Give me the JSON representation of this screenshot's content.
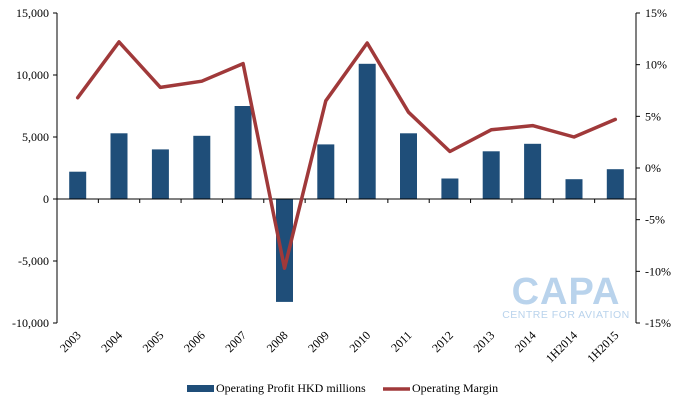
{
  "chart_data": {
    "type": "bar",
    "categories": [
      "2003",
      "2004",
      "2005",
      "2006",
      "2007",
      "2008",
      "2009",
      "2010",
      "2011",
      "2012",
      "2013",
      "2014",
      "1H2014",
      "1H2015"
    ],
    "series": [
      {
        "name": "Operating Profit HKD millions",
        "type": "bar",
        "axis": "left",
        "color": "#1f4e79",
        "values": [
          2200,
          5300,
          4000,
          5100,
          7500,
          -8300,
          4400,
          10900,
          5300,
          1650,
          3850,
          4450,
          1600,
          2400
        ]
      },
      {
        "name": "Operating Margin",
        "type": "line",
        "axis": "right",
        "color": "#a0393a",
        "values": [
          6.8,
          12.2,
          7.8,
          8.4,
          10.1,
          -9.7,
          6.5,
          12.1,
          5.4,
          1.6,
          3.7,
          4.1,
          3.0,
          4.7
        ]
      }
    ],
    "y_left": {
      "min": -10000,
      "max": 15000,
      "ticks": [
        15000,
        10000,
        5000,
        0,
        -5000,
        -10000
      ],
      "tick_labels": [
        "15,000",
        "10,000",
        "5,000",
        "0",
        "-5,000",
        "-10,000"
      ]
    },
    "y_right": {
      "min": -15,
      "max": 15,
      "ticks": [
        15,
        10,
        5,
        0,
        -5,
        -10,
        -15
      ],
      "tick_labels": [
        "15%",
        "10%",
        "5%",
        "0%",
        "-5%",
        "-10%",
        "-15%"
      ]
    },
    "legend": {
      "placement": "bottom"
    },
    "watermark": {
      "big": "CAPA",
      "small": "CENTRE FOR AVIATION"
    },
    "grid": false
  }
}
